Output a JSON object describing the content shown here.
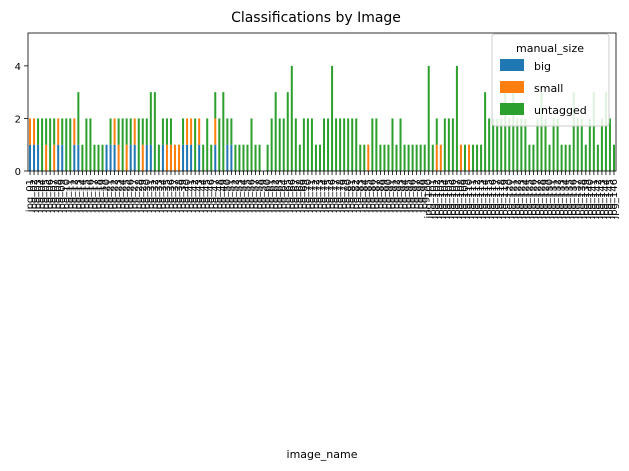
{
  "chart_data": {
    "type": "bar",
    "stacked": true,
    "title": "Classifications by Image",
    "xlabel": "image_name",
    "ylabel": "",
    "ylim": [
      0,
      5.25
    ],
    "yticks": [
      0,
      2,
      4
    ],
    "grid": false,
    "legend": {
      "title": "manual_size",
      "placement": "top-right"
    },
    "categories": [
      "jpg_01",
      "jpg_02",
      "jpg_03",
      "jpg_04",
      "jpg_05",
      "jpg_06",
      "jpg_07",
      "jpg_08",
      "jpg_09",
      "jpg_10",
      "jpg_11",
      "jpg_12",
      "jpg_13",
      "jpg_14",
      "jpg_15",
      "jpg_16",
      "jpg_17",
      "jpg_18",
      "jpg_19",
      "jpg_20",
      "jpg_21",
      "jpg_22",
      "jpg_23",
      "jpg_24",
      "jpg_25",
      "jpg_26",
      "jpg_27",
      "jpg_28",
      "jpg_29",
      "jpg_30",
      "jpg_31",
      "jpg_32",
      "jpg_33",
      "jpg_34",
      "jpg_35",
      "jpg_36",
      "jpg_37",
      "jpg_38",
      "jpg_39",
      "jpg_40",
      "jpg_41",
      "jpg_42",
      "jpg_43",
      "jpg_44",
      "jpg_45",
      "jpg_46",
      "jpg_47",
      "jpg_48",
      "jpg_49",
      "jpg_50",
      "jpg_51",
      "jpg_52",
      "jpg_53",
      "jpg_54",
      "jpg_55",
      "jpg_56",
      "jpg_57",
      "jpg_58",
      "jpg_59",
      "jpg_60",
      "jpg_61",
      "jpg_62",
      "jpg_63",
      "jpg_64",
      "jpg_65",
      "jpg_66",
      "jpg_67",
      "jpg_68",
      "jpg_69",
      "jpg_70",
      "jpg_71",
      "jpg_72",
      "jpg_73",
      "jpg_74",
      "jpg_75",
      "jpg_76",
      "jpg_77",
      "jpg_78",
      "jpg_79",
      "jpg_80",
      "jpg_81",
      "jpg_82",
      "jpg_83",
      "jpg_84",
      "jpg_85",
      "jpg_86",
      "jpg_87",
      "jpg_88",
      "jpg_89",
      "jpg_90",
      "jpg_91",
      "jpg_92",
      "jpg_93",
      "jpg_94",
      "jpg_95",
      "jpg_96",
      "jpg_97",
      "jpg_98",
      "jpg_99",
      "jpg_100",
      "jpg_101",
      "jpg_102",
      "jpg_103",
      "jpg_104",
      "jpg_105",
      "jpg_106",
      "jpg_107",
      "jpg_108",
      "jpg_109",
      "jpg_110",
      "jpg_111",
      "jpg_112",
      "jpg_113",
      "jpg_114",
      "jpg_115",
      "jpg_116",
      "jpg_117",
      "jpg_118",
      "jpg_119",
      "jpg_120",
      "jpg_121",
      "jpg_122",
      "jpg_123",
      "jpg_124",
      "jpg_125",
      "jpg_126",
      "jpg_127",
      "jpg_128",
      "jpg_129",
      "jpg_130",
      "jpg_131",
      "jpg_132",
      "jpg_133",
      "jpg_134",
      "jpg_135",
      "jpg_136",
      "jpg_137",
      "jpg_138",
      "jpg_139",
      "jpg_140",
      "jpg_141",
      "jpg_142",
      "jpg_143",
      "jpg_144",
      "jpg_145",
      "jpg_146"
    ],
    "series": [
      {
        "name": "big",
        "color": "#1f77b4",
        "values": [
          1,
          1,
          1,
          0,
          0,
          0,
          0,
          1,
          1,
          0,
          0,
          1,
          1,
          0,
          0,
          0,
          0,
          0,
          0,
          1,
          1,
          1,
          0,
          0,
          0,
          1,
          1,
          0,
          0,
          1,
          1,
          0,
          0,
          1,
          0,
          0,
          0,
          0,
          1,
          1,
          1,
          0,
          1,
          0,
          0,
          0,
          1,
          0,
          0,
          1,
          1,
          0,
          0,
          0,
          0,
          0,
          0,
          0,
          0,
          0,
          0,
          0,
          0,
          0,
          0,
          0,
          0,
          0,
          0,
          0,
          0,
          0,
          0,
          0,
          0,
          0,
          0,
          0,
          0,
          0,
          0,
          0,
          0,
          0,
          0,
          0,
          0,
          0,
          0,
          0,
          0,
          0,
          0,
          0,
          0,
          0,
          0,
          0,
          0,
          0,
          0,
          0,
          0,
          0,
          0,
          0,
          0,
          0,
          0,
          0,
          0,
          0,
          0,
          0,
          0,
          0,
          0,
          0,
          0,
          0,
          0,
          0,
          0,
          0,
          0,
          0,
          0,
          0,
          0,
          0,
          0,
          0,
          0,
          0,
          0,
          0,
          0,
          0,
          0,
          0,
          0,
          0,
          0,
          0,
          0,
          0
        ]
      },
      {
        "name": "small",
        "color": "#ff7f0e",
        "values": [
          1,
          1,
          0,
          0,
          1,
          0,
          1,
          1,
          0,
          0,
          0,
          1,
          0,
          0,
          0,
          0,
          0,
          0,
          0,
          0,
          0,
          1,
          1,
          0,
          1,
          0,
          1,
          0,
          1,
          0,
          0,
          0,
          0,
          0,
          1,
          1,
          1,
          1,
          0,
          1,
          1,
          0,
          1,
          0,
          0,
          0,
          1,
          0,
          0,
          0,
          0,
          0,
          0,
          0,
          0,
          0,
          0,
          0,
          0,
          0,
          0,
          0,
          0,
          0,
          0,
          0,
          0,
          0,
          0,
          0,
          0,
          0,
          0,
          0,
          0,
          0,
          0,
          0,
          0,
          0,
          0,
          0,
          0,
          0,
          1,
          0,
          0,
          0,
          0,
          0,
          0,
          0,
          0,
          0,
          0,
          0,
          0,
          0,
          0,
          0,
          0,
          1,
          1,
          0,
          0,
          0,
          0,
          1,
          0,
          1,
          0,
          0,
          0,
          0,
          0,
          0,
          0,
          0,
          0,
          0,
          0,
          0,
          0,
          0,
          0,
          0,
          0,
          0,
          0,
          0,
          0,
          0,
          0,
          0,
          0,
          0,
          0,
          0,
          0,
          0,
          0,
          0,
          0,
          0,
          0,
          0
        ]
      },
      {
        "name": "untagged",
        "color": "#2ca02c",
        "values": [
          0,
          0,
          1,
          2,
          1,
          2,
          1,
          0,
          1,
          2,
          2,
          0,
          2,
          1,
          2,
          2,
          1,
          1,
          1,
          0,
          1,
          0,
          1,
          2,
          1,
          1,
          0,
          2,
          1,
          1,
          2,
          3,
          1,
          1,
          1,
          1,
          0,
          0,
          1,
          0,
          0,
          2,
          0,
          1,
          2,
          1,
          1,
          2,
          3,
          1,
          1,
          1,
          1,
          1,
          1,
          2,
          1,
          1,
          0,
          1,
          2,
          3,
          2,
          2,
          3,
          4,
          2,
          1,
          2,
          2,
          2,
          1,
          1,
          2,
          2,
          4,
          2,
          2,
          2,
          2,
          2,
          2,
          1,
          1,
          0,
          2,
          2,
          1,
          1,
          1,
          2,
          1,
          2,
          1,
          1,
          1,
          1,
          1,
          1,
          4,
          1,
          1,
          0,
          2,
          2,
          2,
          4,
          0,
          1,
          0,
          1,
          1,
          1,
          3,
          2,
          2,
          2,
          2,
          3,
          2,
          3,
          2,
          2,
          2,
          1,
          1,
          2,
          3,
          2,
          1,
          2,
          2,
          1,
          1,
          1,
          3,
          2,
          2,
          1,
          2,
          3,
          1,
          2,
          3,
          2,
          1
        ]
      }
    ]
  }
}
